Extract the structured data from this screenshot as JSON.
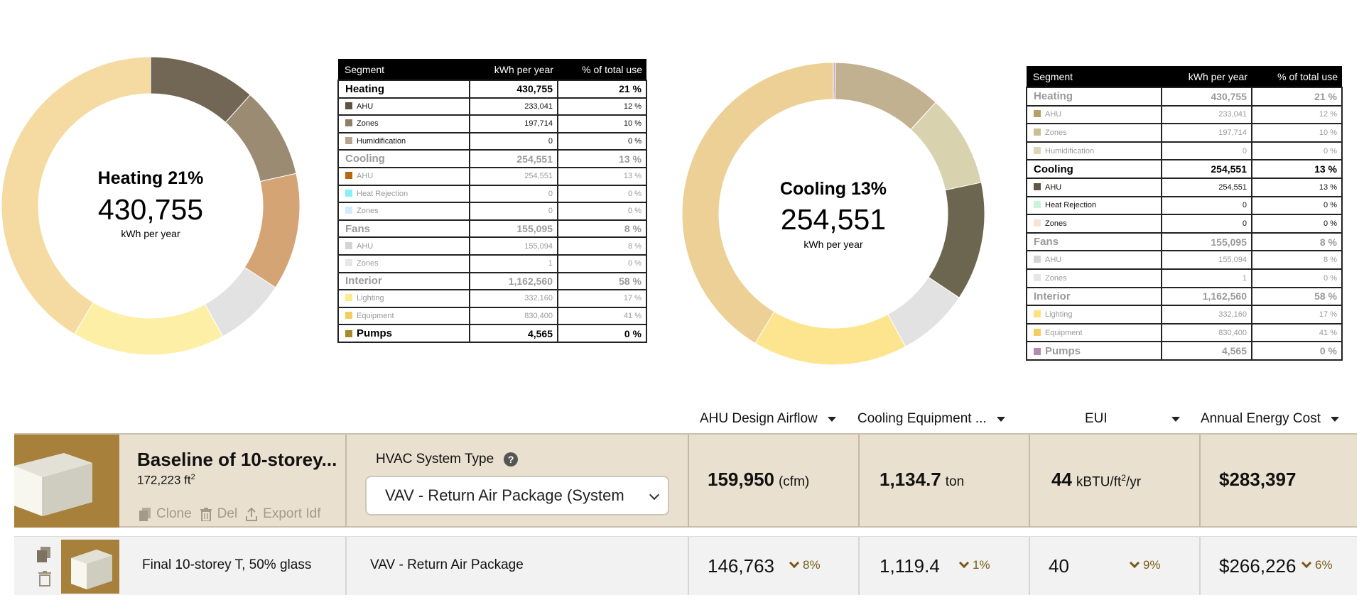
{
  "heating_panel": {
    "title": "Heating 21%",
    "value": "430,755",
    "unit": "kWh per year",
    "donut": [
      {
        "segment": "AHU",
        "value": 233041,
        "color": "#726654"
      },
      {
        "segment": "Zones",
        "value": 197714,
        "color": "#9b8b73"
      },
      {
        "segment": "Cooling",
        "value": 254551,
        "color": "#d5a474"
      },
      {
        "segment": "Fans",
        "value": 155095,
        "color": "#e2e2e2"
      },
      {
        "segment": "Lighting",
        "value": 332160,
        "color": "#fdf0a6"
      },
      {
        "segment": "Equipment",
        "value": 830400,
        "color": "#f5dba1"
      }
    ]
  },
  "cooling_panel": {
    "title": "Cooling 13%",
    "value": "254,551",
    "unit": "kWh per year",
    "donut": [
      {
        "segment": "Pumps",
        "value": 4565,
        "color": "#c9a8c6"
      },
      {
        "segment": "AHU",
        "value": 233041,
        "color": "#c2b190"
      },
      {
        "segment": "Zones",
        "value": 197714,
        "color": "#d8d2ae"
      },
      {
        "segment": "Cooling",
        "value": 254551,
        "color": "#6c6650"
      },
      {
        "segment": "Fans",
        "value": 155095,
        "color": "#e2e2e2"
      },
      {
        "segment": "Lighting",
        "value": 332160,
        "color": "#fde58f"
      },
      {
        "segment": "Equipment",
        "value": 830400,
        "color": "#ecd095"
      }
    ]
  },
  "table_headers": [
    "Segment",
    "kWh per year",
    "% of total use"
  ],
  "left_table": [
    {
      "label": "Heating",
      "kwh": "430,755",
      "pct": "21 %",
      "group": true,
      "dim": false
    },
    {
      "label": "AHU",
      "kwh": "233,041",
      "pct": "12 %",
      "group": false,
      "dim": false,
      "color": "#5e5240"
    },
    {
      "label": "Zones",
      "kwh": "197,714",
      "pct": "10 %",
      "group": false,
      "dim": false,
      "color": "#8e8068"
    },
    {
      "label": "Humidification",
      "kwh": "0",
      "pct": "0 %",
      "group": false,
      "dim": false,
      "color": "#b5a690"
    },
    {
      "label": "Cooling",
      "kwh": "254,551",
      "pct": "13 %",
      "group": true,
      "dim": true
    },
    {
      "label": "AHU",
      "kwh": "254,551",
      "pct": "13 %",
      "group": false,
      "dim": true,
      "color": "#b8660f"
    },
    {
      "label": "Heat Rejection",
      "kwh": "0",
      "pct": "0 %",
      "group": false,
      "dim": true,
      "color": "#86f0f4"
    },
    {
      "label": "Zones",
      "kwh": "0",
      "pct": "0 %",
      "group": false,
      "dim": true,
      "color": "#d4ecf8"
    },
    {
      "label": "Fans",
      "kwh": "155,095",
      "pct": "8 %",
      "group": true,
      "dim": true
    },
    {
      "label": "AHU",
      "kwh": "155,094",
      "pct": "8 %",
      "group": false,
      "dim": true,
      "color": "#d4d4d4"
    },
    {
      "label": "Zones",
      "kwh": "1",
      "pct": "0 %",
      "group": false,
      "dim": true,
      "color": "#e6e6e6"
    },
    {
      "label": "Interior",
      "kwh": "1,162,560",
      "pct": "58 %",
      "group": true,
      "dim": true
    },
    {
      "label": "Lighting",
      "kwh": "332,160",
      "pct": "17 %",
      "group": false,
      "dim": true,
      "color": "#fcec8a"
    },
    {
      "label": "Equipment",
      "kwh": "830,400",
      "pct": "41 %",
      "group": false,
      "dim": true,
      "color": "#f2cd62"
    },
    {
      "label": "Pumps",
      "kwh": "4,565",
      "pct": "0 %",
      "group": true,
      "dim": false,
      "color": "#a88a2a"
    }
  ],
  "right_table": [
    {
      "label": "Heating",
      "kwh": "430,755",
      "pct": "21 %",
      "group": true,
      "dim": true
    },
    {
      "label": "AHU",
      "kwh": "233,041",
      "pct": "12 %",
      "group": false,
      "dim": true,
      "color": "#b4a16a"
    },
    {
      "label": "Zones",
      "kwh": "197,714",
      "pct": "10 %",
      "group": false,
      "dim": true,
      "color": "#c9bf94"
    },
    {
      "label": "Humidification",
      "kwh": "0",
      "pct": "0 %",
      "group": false,
      "dim": true,
      "color": "#dcd5b7"
    },
    {
      "label": "Cooling",
      "kwh": "254,551",
      "pct": "13 %",
      "group": true,
      "dim": false
    },
    {
      "label": "AHU",
      "kwh": "254,551",
      "pct": "13 %",
      "group": false,
      "dim": false,
      "color": "#5e5846"
    },
    {
      "label": "Heat Rejection",
      "kwh": "0",
      "pct": "0 %",
      "group": false,
      "dim": false,
      "color": "#c9f5d6"
    },
    {
      "label": "Zones",
      "kwh": "0",
      "pct": "0 %",
      "group": false,
      "dim": false,
      "color": "#f8e3d4"
    },
    {
      "label": "Fans",
      "kwh": "155,095",
      "pct": "8 %",
      "group": true,
      "dim": true
    },
    {
      "label": "AHU",
      "kwh": "155,094",
      "pct": "8 %",
      "group": false,
      "dim": true,
      "color": "#d4d4d4"
    },
    {
      "label": "Zones",
      "kwh": "1",
      "pct": "0 %",
      "group": false,
      "dim": true,
      "color": "#e6e6e6"
    },
    {
      "label": "Interior",
      "kwh": "1,162,560",
      "pct": "58 %",
      "group": true,
      "dim": true
    },
    {
      "label": "Lighting",
      "kwh": "332,160",
      "pct": "17 %",
      "group": false,
      "dim": true,
      "color": "#fce27a"
    },
    {
      "label": "Equipment",
      "kwh": "830,400",
      "pct": "41 %",
      "group": false,
      "dim": true,
      "color": "#f2cd62"
    },
    {
      "label": "Pumps",
      "kwh": "4,565",
      "pct": "0 %",
      "group": true,
      "dim": true,
      "color": "#b589b3"
    }
  ],
  "columns": {
    "airflow": "AHU Design Airflow",
    "cooling": "Cooling Equipment ...",
    "eui": "EUI",
    "cost": "Annual Energy Cost"
  },
  "baseline": {
    "name": "Baseline of 10-storey...",
    "area": "172,223 ft",
    "area_sup": "2",
    "clone": "Clone",
    "del": "Del",
    "export": "Export Idf",
    "hvac_label": "HVAC System Type",
    "hvac_help": "?",
    "hvac_value": "VAV - Return Air Package (System",
    "airflow": "159,950",
    "airflow_unit": "(cfm)",
    "cooling": "1,134.7",
    "cooling_unit": "ton",
    "eui": "44",
    "eui_unit": "kBTU/ft",
    "eui_sup": "2",
    "eui_unit_tail": "/yr",
    "cost": "$283,397"
  },
  "final": {
    "name": "Final 10-storey T, 50% glass",
    "hvac": "VAV - Return Air Package",
    "airflow": "146,763",
    "airflow_delta": "8%",
    "cooling": "1,119.4",
    "cooling_delta": "1%",
    "eui": "40",
    "eui_delta": "9%",
    "cost": "$266,226",
    "cost_delta": "6%"
  }
}
